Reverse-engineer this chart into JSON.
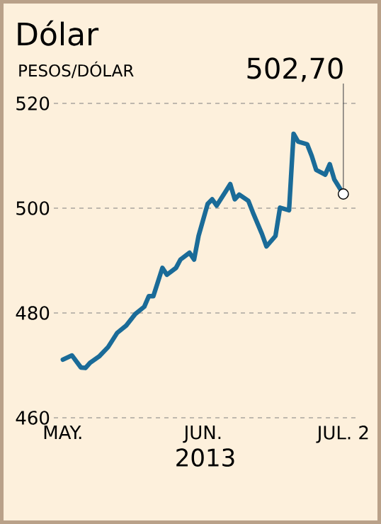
{
  "chart_data": {
    "type": "line",
    "title": "Dólar",
    "subtitle": "PESOS/DÓLAR",
    "xlabel": "2013",
    "x": [
      "2013-05-01",
      "2013-05-03",
      "2013-05-05",
      "2013-05-06",
      "2013-05-07",
      "2013-05-09",
      "2013-05-11",
      "2013-05-13",
      "2013-05-15",
      "2013-05-17",
      "2013-05-19",
      "2013-05-20",
      "2013-05-21",
      "2013-05-23",
      "2013-05-24",
      "2013-05-26",
      "2013-05-27",
      "2013-05-29",
      "2013-05-30",
      "2013-05-31",
      "2013-06-02",
      "2013-06-03",
      "2013-06-04",
      "2013-06-06",
      "2013-06-07",
      "2013-06-08",
      "2013-06-09",
      "2013-06-11",
      "2013-06-12",
      "2013-06-14",
      "2013-06-15",
      "2013-06-17",
      "2013-06-18",
      "2013-06-20",
      "2013-06-21",
      "2013-06-22",
      "2013-06-24",
      "2013-06-25",
      "2013-06-26",
      "2013-06-28",
      "2013-06-29",
      "2013-06-30",
      "2013-07-02"
    ],
    "series": [
      {
        "color": "#1a6b98",
        "values": [
          471.1,
          471.9,
          469.6,
          469.5,
          470.5,
          471.7,
          473.5,
          476.2,
          477.6,
          479.8,
          481.2,
          483.2,
          483.2,
          488.6,
          487.3,
          488.6,
          490.2,
          491.5,
          490.2,
          494.7,
          500.8,
          501.7,
          500.5,
          503.2,
          504.6,
          501.7,
          502.6,
          501.4,
          499.2,
          495.1,
          492.7,
          494.7,
          500.1,
          499.6,
          514.2,
          512.7,
          512.2,
          510.0,
          507.3,
          506.4,
          508.4,
          505.5,
          502.7
        ]
      }
    ],
    "xlim": [
      "2013-04-29",
      "2013-07-05"
    ],
    "ylim": [
      460,
      520
    ],
    "xticks": [
      {
        "value": "2013-05-01",
        "label": "MAY."
      },
      {
        "value": "2013-06-01",
        "label": "JUN."
      },
      {
        "value": "2013-07-02",
        "label": "JUL. 2"
      }
    ],
    "yticks": [
      460,
      480,
      500,
      520
    ],
    "grid": "y",
    "line_style": "solid",
    "annotations": [
      {
        "text": "502,70",
        "x": "2013-07-02",
        "y": 502.7
      }
    ]
  }
}
